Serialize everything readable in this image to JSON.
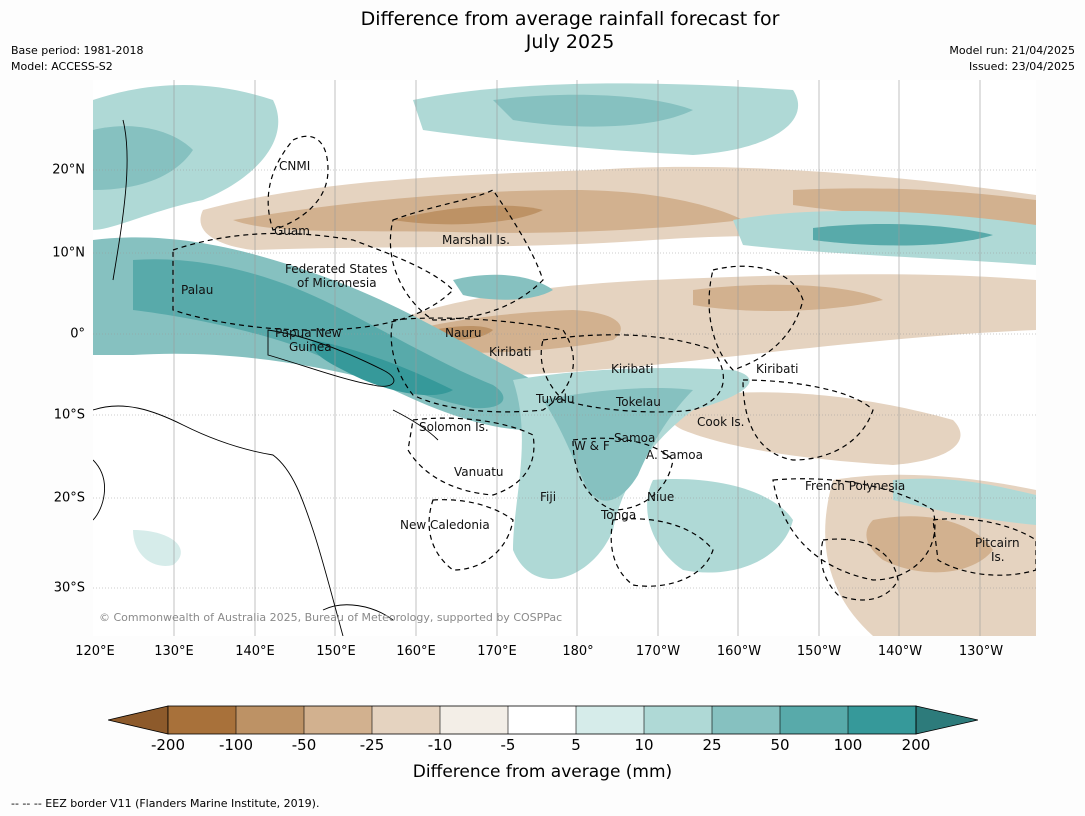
{
  "title": {
    "line1": "Difference from average rainfall forecast for",
    "line2": "July 2025"
  },
  "meta": {
    "base_period": "Base period: 1981-2018",
    "model": "Model: ACCESS-S2",
    "model_run": "Model run: 21/04/2025",
    "issued": "Issued: 23/04/2025"
  },
  "map": {
    "region": "Western and central Pacific",
    "latitude_labels": [
      "20°N",
      "10°N",
      "0°",
      "10°S",
      "20°S",
      "30°S"
    ],
    "longitude_labels": [
      "120°E",
      "130°E",
      "140°E",
      "150°E",
      "160°E",
      "170°E",
      "180°",
      "170°W",
      "160°W",
      "150°W",
      "140°W",
      "130°W"
    ],
    "place_labels": [
      {
        "id": "cnmi",
        "text": "CNMI"
      },
      {
        "id": "guam",
        "text": "Guam"
      },
      {
        "id": "marshall",
        "text": "Marshall Is."
      },
      {
        "id": "fsm1",
        "text": "Federated States"
      },
      {
        "id": "fsm2",
        "text": "of Micronesia"
      },
      {
        "id": "palau",
        "text": "Palau"
      },
      {
        "id": "png1",
        "text": "Papua New"
      },
      {
        "id": "png2",
        "text": "Guinea"
      },
      {
        "id": "nauru",
        "text": "Nauru"
      },
      {
        "id": "kiribati_w",
        "text": "Kiribati"
      },
      {
        "id": "kiribati_c",
        "text": "Kiribati"
      },
      {
        "id": "kiribati_e",
        "text": "Kiribati"
      },
      {
        "id": "tuvalu",
        "text": "Tuvalu"
      },
      {
        "id": "tokelau",
        "text": "Tokelau"
      },
      {
        "id": "cook",
        "text": "Cook Is."
      },
      {
        "id": "solomon",
        "text": "Solomon Is."
      },
      {
        "id": "samoa",
        "text": "Samoa"
      },
      {
        "id": "wf",
        "text": "W & F"
      },
      {
        "id": "asamoa",
        "text": "A. Samoa"
      },
      {
        "id": "vanuatu",
        "text": "Vanuatu"
      },
      {
        "id": "fiji",
        "text": "Fiji"
      },
      {
        "id": "niue",
        "text": "Niue"
      },
      {
        "id": "frpoly",
        "text": "French Polynesia"
      },
      {
        "id": "tonga",
        "text": "Tonga"
      },
      {
        "id": "newcal",
        "text": "New Caledonia"
      },
      {
        "id": "pitcairn1",
        "text": "Pitcairn"
      },
      {
        "id": "pitcairn2",
        "text": "Is."
      }
    ],
    "copyright": "© Commonwealth of Australia 2025, Bureau of Meteorology, supported by COSPPac",
    "colors": {
      "dry_200": "#a8713a",
      "dry_100": "#bd9265",
      "dry_50": "#d2b18f",
      "dry_25": "#e5d3c0",
      "dry_10": "#f3eee7",
      "neutral": "#ffffff",
      "wet_5": "#d6ecea",
      "wet_10": "#afd9d6",
      "wet_25": "#86c1c0",
      "wet_50": "#58aaaa",
      "wet_100": "#36999a",
      "wet_200": "#2d7b7b"
    }
  },
  "legend": {
    "ticks": [
      "-200",
      "-100",
      "-50",
      "-25",
      "-10",
      "-5",
      "5",
      "10",
      "25",
      "50",
      "100",
      "200"
    ],
    "title": "Difference from average (mm)",
    "bins": [
      {
        "range": "< -200",
        "color": "#8d5a2b"
      },
      {
        "range": "-200 to -100",
        "color": "#a8713a"
      },
      {
        "range": "-100 to -50",
        "color": "#bd9265"
      },
      {
        "range": "-50 to -25",
        "color": "#d2b18f"
      },
      {
        "range": "-25 to -10",
        "color": "#e5d3c0"
      },
      {
        "range": "-10 to -5",
        "color": "#f3eee7"
      },
      {
        "range": "-5 to 5",
        "color": "#ffffff"
      },
      {
        "range": "5 to 10",
        "color": "#d6ecea"
      },
      {
        "range": "10 to 25",
        "color": "#afd9d6"
      },
      {
        "range": "25 to 50",
        "color": "#86c1c0"
      },
      {
        "range": "50 to 100",
        "color": "#58aaaa"
      },
      {
        "range": "100 to 200",
        "color": "#36999a"
      },
      {
        "range": "> 200",
        "color": "#2d7b7b"
      }
    ]
  },
  "footnote": "--  --  -- EEZ border V11 (Flanders Marine Institute, 2019)."
}
